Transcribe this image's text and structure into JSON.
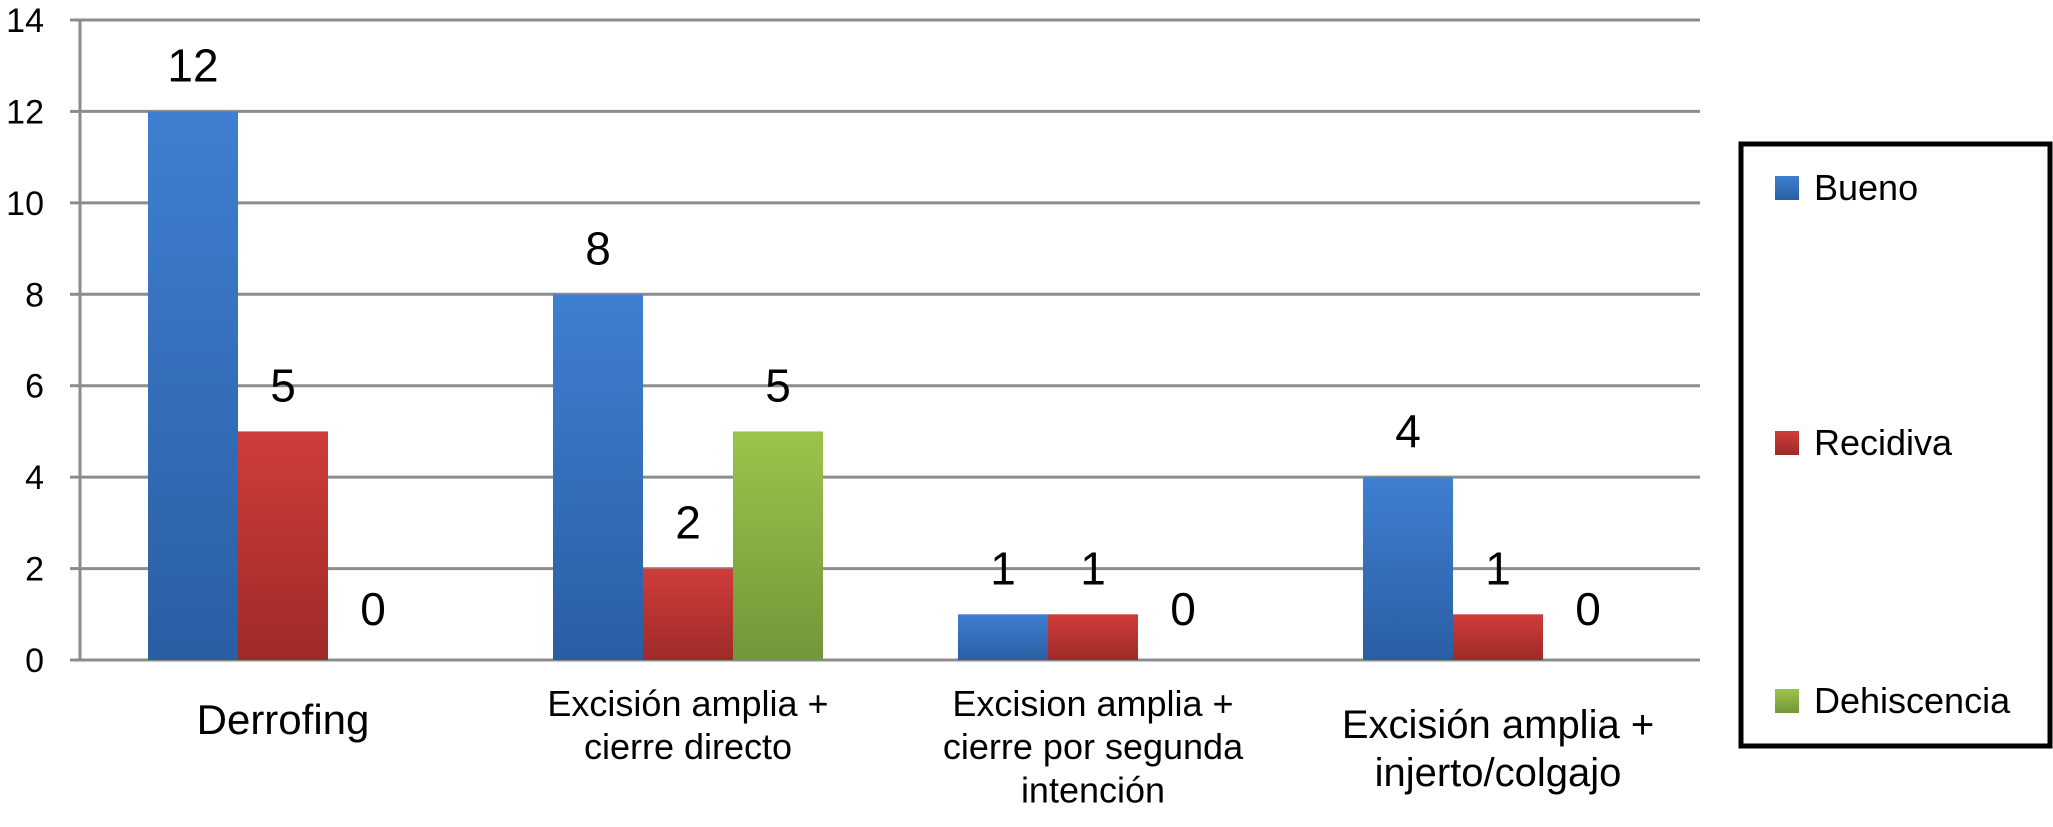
{
  "chart_data": {
    "type": "bar",
    "categories": [
      [
        "Derrofing"
      ],
      [
        "Excisión amplia +",
        "cierre directo"
      ],
      [
        "Excision amplia +",
        "cierre por segunda",
        "intención"
      ],
      [
        "Excisión amplia +",
        "injerto/colgajo"
      ]
    ],
    "series": [
      {
        "name": "Bueno",
        "values": [
          12,
          8,
          1,
          4
        ]
      },
      {
        "name": "Recidiva",
        "values": [
          5,
          2,
          1,
          1
        ]
      },
      {
        "name": "Dehiscencia",
        "values": [
          0,
          5,
          0,
          0
        ]
      }
    ],
    "ylim": [
      0,
      14
    ],
    "yticks": [
      0,
      2,
      4,
      6,
      8,
      10,
      12,
      14
    ],
    "grid": true,
    "legend": "right",
    "title": "",
    "xlabel": "",
    "ylabel": ""
  },
  "colors": {
    "series": [
      "#3f7fd1",
      "#cf3d3a",
      "#9bc44a"
    ],
    "series_dark": [
      "#2a5ea3",
      "#9e2a28",
      "#72963a"
    ],
    "grid": "#8c8c8c",
    "axis": "#8c8c8c"
  }
}
